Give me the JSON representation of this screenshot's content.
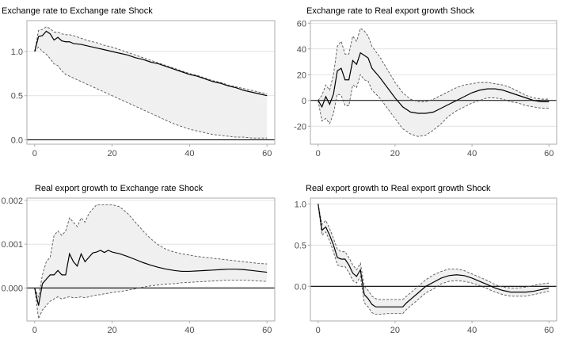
{
  "chart_data": [
    {
      "type": "line",
      "title": "Exchange rate to Exchange rate Shock",
      "xlim": [
        -2,
        62
      ],
      "ylim": [
        -0.05,
        1.35
      ],
      "xticks": [
        0,
        20,
        40,
        60
      ],
      "yticks": [
        0.0,
        0.5,
        1.0
      ],
      "ytick_labels": [
        "0.0",
        "0.5",
        "1.0"
      ],
      "zero_line": true,
      "grid": "horizontal",
      "x": [
        0,
        1,
        2,
        3,
        4,
        5,
        6,
        7,
        8,
        9,
        10,
        12,
        14,
        16,
        18,
        20,
        22,
        24,
        26,
        28,
        30,
        32,
        34,
        36,
        38,
        40,
        42,
        44,
        46,
        48,
        50,
        52,
        54,
        56,
        58,
        60
      ],
      "response": [
        1.0,
        1.17,
        1.18,
        1.23,
        1.2,
        1.13,
        1.16,
        1.12,
        1.11,
        1.11,
        1.09,
        1.08,
        1.06,
        1.04,
        1.02,
        1.0,
        0.98,
        0.96,
        0.93,
        0.91,
        0.88,
        0.86,
        0.83,
        0.8,
        0.77,
        0.74,
        0.72,
        0.69,
        0.66,
        0.64,
        0.61,
        0.59,
        0.56,
        0.54,
        0.52,
        0.5
      ],
      "upper": [
        1.0,
        1.24,
        1.25,
        1.28,
        1.26,
        1.22,
        1.22,
        1.2,
        1.19,
        1.19,
        1.18,
        1.15,
        1.12,
        1.1,
        1.07,
        1.05,
        1.02,
        0.99,
        0.96,
        0.93,
        0.9,
        0.87,
        0.84,
        0.81,
        0.78,
        0.75,
        0.73,
        0.7,
        0.67,
        0.65,
        0.62,
        0.6,
        0.58,
        0.56,
        0.54,
        0.52
      ],
      "lower": [
        1.0,
        1.05,
        1.0,
        0.97,
        0.92,
        0.86,
        0.84,
        0.78,
        0.74,
        0.72,
        0.7,
        0.66,
        0.62,
        0.58,
        0.54,
        0.5,
        0.46,
        0.42,
        0.38,
        0.34,
        0.3,
        0.26,
        0.22,
        0.18,
        0.15,
        0.12,
        0.1,
        0.08,
        0.06,
        0.05,
        0.04,
        0.03,
        0.03,
        0.02,
        0.02,
        0.02
      ]
    },
    {
      "type": "line",
      "title": "Exchange rate to Real export growth Shock",
      "xlim": [
        -2,
        62
      ],
      "ylim": [
        -34,
        62
      ],
      "xticks": [
        0,
        20,
        40,
        60
      ],
      "yticks": [
        -20,
        0,
        20,
        40,
        60
      ],
      "ytick_labels": [
        "-20",
        "0",
        "20",
        "40",
        "60"
      ],
      "zero_line": true,
      "grid": "horizontal",
      "x": [
        0,
        1,
        2,
        3,
        4,
        5,
        6,
        7,
        8,
        9,
        10,
        11,
        12,
        13,
        14,
        16,
        18,
        20,
        22,
        24,
        26,
        28,
        30,
        32,
        34,
        36,
        38,
        40,
        42,
        44,
        46,
        48,
        50,
        52,
        54,
        56,
        58,
        60
      ],
      "response": [
        0,
        -5,
        3,
        -3,
        5,
        23,
        25,
        16,
        16,
        31,
        28,
        37,
        35,
        33,
        25,
        18,
        10,
        2,
        -5,
        -9,
        -10,
        -10,
        -9,
        -6,
        -3,
        0,
        3,
        6,
        8,
        9,
        9,
        8,
        6,
        4,
        2,
        0,
        -1,
        -1
      ],
      "upper": [
        0,
        4,
        12,
        8,
        20,
        42,
        46,
        36,
        36,
        50,
        46,
        56,
        54,
        50,
        42,
        34,
        24,
        14,
        6,
        1,
        -1,
        -1,
        1,
        4,
        7,
        10,
        12,
        13,
        14,
        14,
        13,
        12,
        10,
        7,
        4,
        2,
        1,
        1
      ],
      "lower": [
        0,
        -16,
        -14,
        -18,
        -10,
        5,
        4,
        -4,
        -4,
        12,
        10,
        20,
        16,
        15,
        8,
        2,
        -6,
        -14,
        -22,
        -26,
        -28,
        -27,
        -23,
        -18,
        -12,
        -8,
        -5,
        -2,
        0,
        2,
        2,
        1,
        -1,
        -2,
        -4,
        -5,
        -6,
        -6
      ]
    },
    {
      "type": "line",
      "title": "Real export growth to Exchange rate Shock",
      "xlim": [
        -2,
        62
      ],
      "ylim": [
        -0.00075,
        0.00205
      ],
      "xticks": [
        0,
        20,
        40,
        60
      ],
      "yticks": [
        0.0,
        0.001,
        0.002
      ],
      "ytick_labels": [
        "0.000",
        "0.001",
        "0.002"
      ],
      "zero_line": true,
      "grid": "horizontal",
      "x": [
        0,
        1,
        2,
        3,
        4,
        5,
        6,
        7,
        8,
        9,
        10,
        11,
        12,
        13,
        14,
        15,
        16,
        17,
        18,
        19,
        20,
        22,
        24,
        26,
        28,
        30,
        32,
        34,
        36,
        38,
        40,
        42,
        44,
        46,
        48,
        50,
        52,
        54,
        56,
        58,
        60
      ],
      "response": [
        0,
        -0.0004,
        0.0001,
        0.0002,
        0.0003,
        0.0003,
        0.0004,
        0.0003,
        0.0003,
        0.00078,
        0.0006,
        0.0005,
        0.00078,
        0.0006,
        0.0007,
        0.0008,
        0.00082,
        0.00086,
        0.00081,
        0.00086,
        0.00082,
        0.00078,
        0.00072,
        0.00065,
        0.00058,
        0.00052,
        0.00047,
        0.00043,
        0.0004,
        0.00038,
        0.00038,
        0.00039,
        0.0004,
        0.00041,
        0.00042,
        0.00043,
        0.00043,
        0.00042,
        0.0004,
        0.00038,
        0.00036
      ],
      "upper": [
        0,
        -0.0002,
        0.0003,
        0.0006,
        0.0007,
        0.0012,
        0.0013,
        0.0012,
        0.0013,
        0.0016,
        0.0015,
        0.0014,
        0.0016,
        0.0015,
        0.0017,
        0.0018,
        0.0019,
        0.0019,
        0.0019,
        0.0019,
        0.0019,
        0.00185,
        0.0017,
        0.0015,
        0.0013,
        0.00112,
        0.00098,
        0.00088,
        0.00082,
        0.00078,
        0.00075,
        0.00072,
        0.0007,
        0.00068,
        0.00066,
        0.00064,
        0.00062,
        0.0006,
        0.00058,
        0.00056,
        0.00055
      ],
      "lower": [
        0,
        -0.0007,
        -0.0005,
        -0.0004,
        -0.0003,
        -0.00025,
        -0.0002,
        -0.00025,
        -0.00022,
        -0.0002,
        -0.00022,
        -0.00022,
        -0.0002,
        -0.00022,
        -0.0002,
        -0.00018,
        -0.00016,
        -0.00015,
        -0.00013,
        -0.00012,
        -0.0001,
        -8e-05,
        -5e-05,
        -2e-05,
        2e-05,
        5e-05,
        7e-05,
        9e-05,
        0.0001,
        0.00012,
        0.00013,
        0.00014,
        0.00015,
        0.00016,
        0.00017,
        0.00018,
        0.00018,
        0.00018,
        0.00017,
        0.00016,
        0.00015
      ]
    },
    {
      "type": "line",
      "title": "Real export growth to Real export growth Shock",
      "xlim": [
        -2,
        62
      ],
      "ylim": [
        -0.42,
        1.07
      ],
      "xticks": [
        0,
        20,
        40,
        60
      ],
      "yticks": [
        0.0,
        0.5,
        1.0
      ],
      "ytick_labels": [
        "0.0",
        "0.5",
        "1.0"
      ],
      "zero_line": true,
      "grid": "horizontal",
      "x": [
        0,
        1,
        2,
        3,
        4,
        5,
        6,
        7,
        8,
        9,
        10,
        11,
        12,
        13,
        14,
        15,
        16,
        18,
        20,
        22,
        23,
        24,
        26,
        28,
        30,
        32,
        34,
        36,
        38,
        40,
        42,
        44,
        46,
        48,
        50,
        52,
        54,
        56,
        58,
        60
      ],
      "response": [
        1.0,
        0.68,
        0.72,
        0.62,
        0.5,
        0.35,
        0.33,
        0.33,
        0.26,
        0.16,
        0.12,
        0.2,
        -0.1,
        -0.15,
        -0.22,
        -0.25,
        -0.25,
        -0.25,
        -0.25,
        -0.25,
        -0.2,
        -0.16,
        -0.08,
        0.0,
        0.05,
        0.1,
        0.13,
        0.14,
        0.13,
        0.1,
        0.06,
        0.02,
        -0.02,
        -0.05,
        -0.07,
        -0.07,
        -0.07,
        -0.06,
        -0.04,
        -0.02
      ],
      "upper": [
        1.0,
        0.75,
        0.8,
        0.7,
        0.58,
        0.45,
        0.42,
        0.42,
        0.35,
        0.26,
        0.2,
        0.28,
        0.0,
        -0.05,
        -0.12,
        -0.15,
        -0.16,
        -0.16,
        -0.16,
        -0.16,
        -0.12,
        -0.08,
        0.0,
        0.08,
        0.14,
        0.18,
        0.21,
        0.21,
        0.19,
        0.15,
        0.11,
        0.07,
        0.02,
        -0.01,
        -0.02,
        -0.02,
        -0.01,
        0.01,
        0.03,
        0.04
      ],
      "lower": [
        1.0,
        0.62,
        0.66,
        0.55,
        0.42,
        0.26,
        0.24,
        0.24,
        0.17,
        0.07,
        0.04,
        0.12,
        -0.2,
        -0.25,
        -0.32,
        -0.34,
        -0.34,
        -0.33,
        -0.33,
        -0.33,
        -0.28,
        -0.24,
        -0.16,
        -0.08,
        -0.03,
        0.03,
        0.06,
        0.07,
        0.06,
        0.04,
        0.01,
        -0.03,
        -0.07,
        -0.1,
        -0.12,
        -0.12,
        -0.12,
        -0.1,
        -0.08,
        -0.06
      ]
    }
  ],
  "colors": {
    "band": "#f0f0f0",
    "line": "#000000",
    "dashed": "#555555",
    "grid": "#d9d9d9",
    "frame": "#ababab",
    "tick_text": "#4d4d4d"
  }
}
